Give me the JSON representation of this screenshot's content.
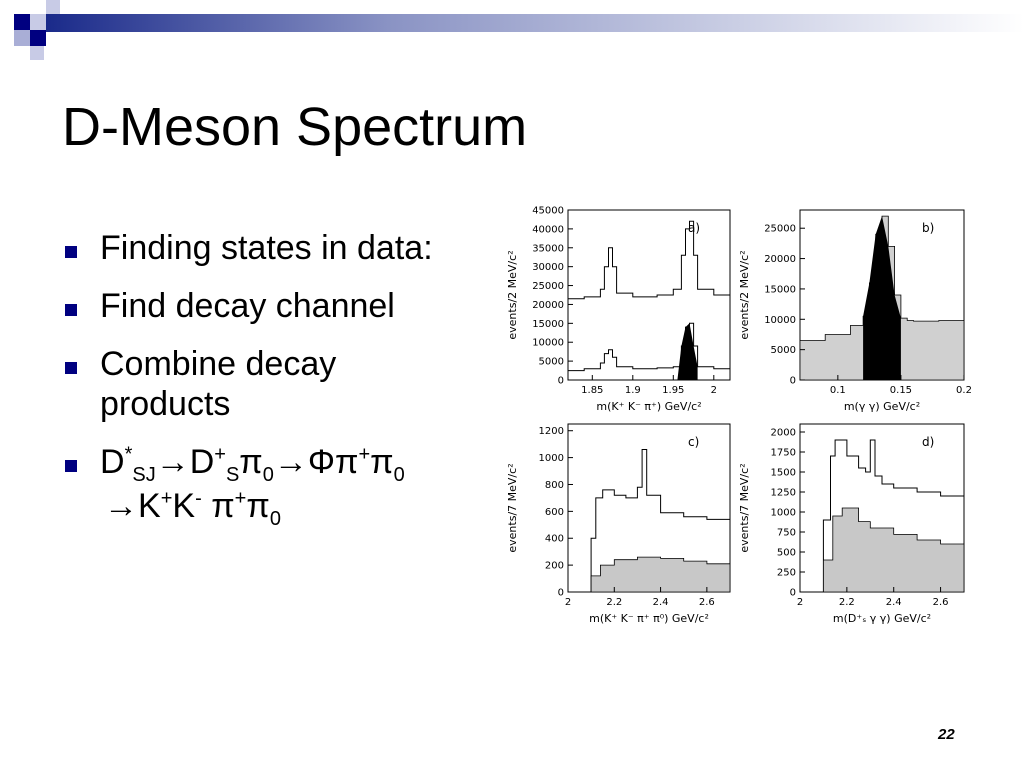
{
  "slide": {
    "title": "D-Meson Spectrum",
    "page_number": "22",
    "accent_color": "#000080",
    "bullets": [
      "Finding states in data:",
      "Find decay channel",
      "Combine decay products"
    ],
    "decay": {
      "D": "D",
      "star": "*",
      "SJ": "SJ",
      "arrow1": "→D",
      "plus1": "+",
      "S": "S",
      "pi": "π",
      "zero1": "0",
      "arrow2": "→Φπ",
      "plus2": "+",
      "pi2": "π",
      "zero2": "0",
      "line2_K": "→K",
      "plus3": "+",
      "K2": "K",
      "minus": "-",
      "pi3": "π",
      "plus4": "+",
      "pi4": "π",
      "zero3": "0"
    }
  },
  "chart_data": [
    {
      "type": "line",
      "panel": "a)",
      "xlabel": "m(K⁺ K⁻ π⁺) GeV/c²",
      "ylabel": "events/2 MeV/c²",
      "xticks": [
        "1.85",
        "1.9",
        "1.95",
        "2"
      ],
      "yticks": [
        "0",
        "5000",
        "10000",
        "15000",
        "20000",
        "25000",
        "30000",
        "35000",
        "40000",
        "45000"
      ],
      "xlim": [
        1.82,
        2.02
      ],
      "ylim": [
        0,
        45000
      ],
      "series": [
        {
          "x": [
            1.82,
            1.84,
            1.86,
            1.865,
            1.87,
            1.875,
            1.88,
            1.9,
            1.93,
            1.95,
            1.96,
            1.965,
            1.97,
            1.975,
            1.98,
            2.0,
            2.02
          ],
          "y": [
            21500,
            22000,
            24000,
            30000,
            35000,
            30000,
            23000,
            22000,
            22500,
            24000,
            33000,
            40000,
            42000,
            33000,
            24000,
            22500,
            22800
          ]
        },
        {
          "x": [
            1.82,
            1.84,
            1.86,
            1.865,
            1.87,
            1.875,
            1.88,
            1.9,
            1.93,
            1.95,
            1.96,
            1.965,
            1.97,
            1.975,
            1.98,
            2.0,
            2.02
          ],
          "y": [
            2500,
            3000,
            4500,
            7000,
            8000,
            6000,
            3500,
            3000,
            3200,
            3500,
            9000,
            14000,
            15000,
            9000,
            3500,
            3000,
            2800
          ]
        }
      ]
    },
    {
      "type": "area",
      "panel": "b)",
      "xlabel": "m(γ γ) GeV/c²",
      "ylabel": "events/2 MeV/c²",
      "xticks": [
        "0.1",
        "0.15",
        "0.2"
      ],
      "yticks": [
        "0",
        "5000",
        "10000",
        "15000",
        "20000",
        "25000"
      ],
      "xlim": [
        0.07,
        0.2
      ],
      "ylim": [
        0,
        28000
      ],
      "series": [
        {
          "x": [
            0.07,
            0.09,
            0.11,
            0.12,
            0.125,
            0.13,
            0.135,
            0.14,
            0.145,
            0.15,
            0.155,
            0.16,
            0.18,
            0.2
          ],
          "y": [
            6500,
            7500,
            9000,
            10500,
            16000,
            24000,
            27000,
            22000,
            14000,
            10200,
            9800,
            9700,
            9800,
            10000
          ]
        }
      ]
    },
    {
      "type": "area",
      "panel": "c)",
      "xlabel": "m(K⁺ K⁻ π⁺ π⁰) GeV/c²",
      "ylabel": "events/7 MeV/c²",
      "xticks": [
        "2",
        "2.2",
        "2.4",
        "2.6"
      ],
      "yticks": [
        "0",
        "200",
        "400",
        "600",
        "800",
        "1000",
        "1200"
      ],
      "xlim": [
        2.0,
        2.7
      ],
      "ylim": [
        0,
        1250
      ],
      "series": [
        {
          "x": [
            2.0,
            2.08,
            2.1,
            2.12,
            2.15,
            2.2,
            2.25,
            2.3,
            2.32,
            2.34,
            2.4,
            2.5,
            2.6,
            2.7
          ],
          "y": [
            0,
            0,
            400,
            700,
            760,
            720,
            700,
            780,
            1060,
            720,
            590,
            560,
            540,
            520
          ]
        },
        {
          "x": [
            2.0,
            2.08,
            2.1,
            2.14,
            2.2,
            2.3,
            2.4,
            2.5,
            2.6,
            2.7
          ],
          "y": [
            0,
            0,
            120,
            200,
            240,
            260,
            250,
            230,
            210,
            190
          ]
        }
      ]
    },
    {
      "type": "area",
      "panel": "d)",
      "xlabel": "m(D⁺ₛ γ γ) GeV/c²",
      "ylabel": "events/7 MeV/c²",
      "xticks": [
        "2",
        "2.2",
        "2.4",
        "2.6"
      ],
      "yticks": [
        "0",
        "250",
        "500",
        "750",
        "1000",
        "1250",
        "1500",
        "1750",
        "2000"
      ],
      "xlim": [
        2.0,
        2.7
      ],
      "ylim": [
        0,
        2100
      ],
      "series": [
        {
          "x": [
            2.0,
            2.08,
            2.1,
            2.13,
            2.15,
            2.2,
            2.25,
            2.28,
            2.3,
            2.32,
            2.35,
            2.4,
            2.5,
            2.6,
            2.7
          ],
          "y": [
            0,
            0,
            900,
            1700,
            1900,
            1700,
            1550,
            1500,
            1900,
            1450,
            1350,
            1300,
            1250,
            1200,
            1150
          ]
        },
        {
          "x": [
            2.0,
            2.08,
            2.1,
            2.14,
            2.18,
            2.25,
            2.3,
            2.4,
            2.5,
            2.6,
            2.7
          ],
          "y": [
            0,
            0,
            400,
            950,
            1050,
            880,
            800,
            720,
            650,
            600,
            540
          ]
        }
      ]
    }
  ]
}
